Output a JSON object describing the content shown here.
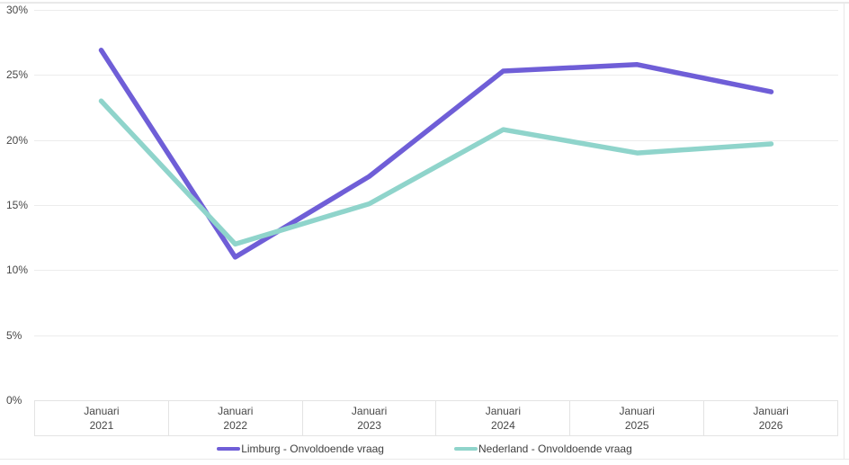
{
  "chart_data": {
    "type": "line",
    "title": "",
    "xlabel": "",
    "ylabel": "",
    "ylim": [
      0,
      30
    ],
    "grid": "horizontal",
    "legend_position": "bottom",
    "x_month_label": "Januari",
    "x_years": [
      "2021",
      "2022",
      "2023",
      "2024",
      "2025",
      "2026"
    ],
    "categories": [
      "Januari 2021",
      "Januari 2022",
      "Januari 2023",
      "Januari 2024",
      "Januari 2025",
      "Januari 2026"
    ],
    "y_ticks": [
      {
        "label": "30%",
        "value": 30
      },
      {
        "label": "25%",
        "value": 25
      },
      {
        "label": "20%",
        "value": 20
      },
      {
        "label": "15%",
        "value": 15
      },
      {
        "label": "10%",
        "value": 10
      },
      {
        "label": "5%",
        "value": 5
      },
      {
        "label": "0%",
        "value": 0
      }
    ],
    "series": [
      {
        "name": "Limburg - Onvoldoende vraag",
        "color": "#6f5ed7",
        "values": [
          26.9,
          11.0,
          17.2,
          25.3,
          25.8,
          23.7
        ]
      },
      {
        "name": "Nederland - Onvoldoende vraag",
        "color": "#8fd4cb",
        "values": [
          23.0,
          12.0,
          15.1,
          20.8,
          19.0,
          19.7
        ]
      }
    ]
  },
  "colors": {
    "background": "#ffffff",
    "gridline": "#ececec",
    "frame": "#e9e9e9",
    "axis_text": "#474747",
    "limburg_line": "#6f5ed7",
    "nederland_line": "#8fd4cb"
  }
}
